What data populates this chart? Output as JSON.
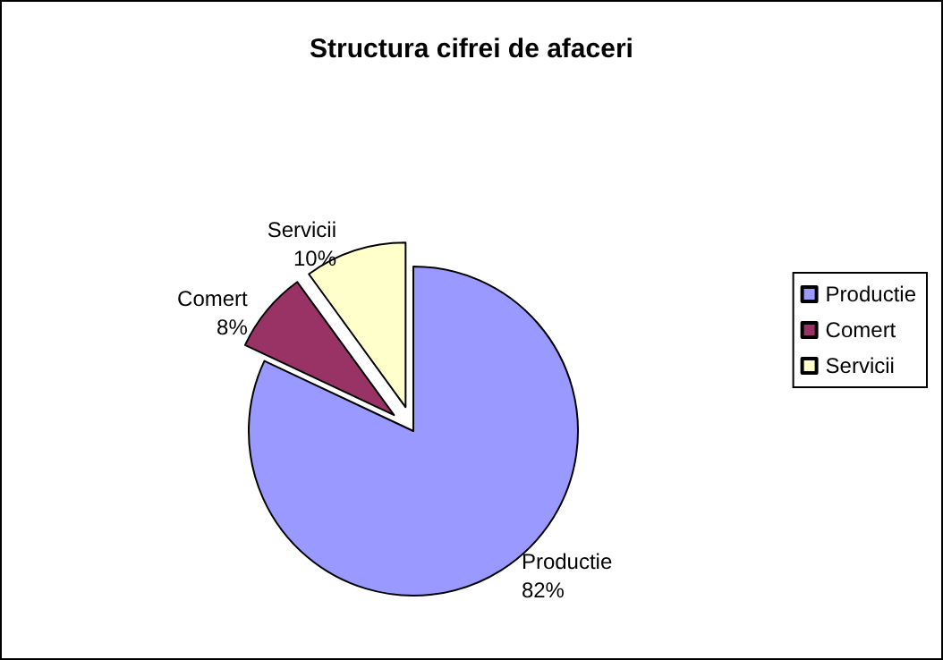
{
  "chart_data": {
    "type": "pie",
    "title": "Structura cifrei de afaceri",
    "categories": [
      "Productie",
      "Comert",
      "Servicii"
    ],
    "values": [
      82,
      8,
      10
    ],
    "colors": [
      "#9999ff",
      "#993366",
      "#ffffcc"
    ],
    "value_labels": [
      "82%",
      "8%",
      "10%"
    ],
    "legend": "right"
  }
}
